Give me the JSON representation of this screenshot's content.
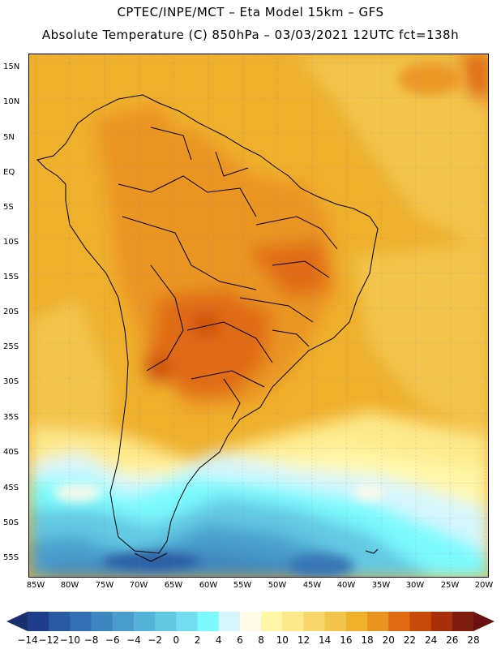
{
  "header": {
    "line1": "CPTEC/INPE/MCT –  Eta Model 15km – GFS",
    "line2": "Absolute Temperature (C) 850hPa – 03/03/2021 12UTC fct=138h"
  },
  "map": {
    "lat_labels": [
      "15N",
      "10N",
      "5N",
      "EQ",
      "5S",
      "10S",
      "15S",
      "20S",
      "25S",
      "30S",
      "35S",
      "40S",
      "45S",
      "50S",
      "55S"
    ],
    "lon_labels": [
      "85W",
      "80W",
      "75W",
      "70W",
      "65W",
      "60W",
      "55W",
      "50W",
      "45W",
      "40W",
      "35W",
      "30W",
      "25W",
      "20W"
    ]
  },
  "colorbar": {
    "labels": [
      "-14",
      "-12",
      "-10",
      "-8",
      "-6",
      "-4",
      "-2",
      "0",
      "2",
      "4",
      "6",
      "8",
      "10",
      "12",
      "14",
      "16",
      "18",
      "20",
      "22",
      "24",
      "26",
      "28"
    ],
    "colors": [
      "#1f3d8a",
      "#2a5aa0",
      "#3471b2",
      "#3e86bf",
      "#4a9ccc",
      "#55b2d8",
      "#62c8e2",
      "#72def0",
      "#7cfaff",
      "#d7f6fc",
      "#fffbe8",
      "#fff6a6",
      "#fde98a",
      "#f8d66a",
      "#f3c44c",
      "#efb02c",
      "#ea9420",
      "#e06a12",
      "#c84a0a",
      "#a8300a",
      "#7e1e0e"
    ],
    "left_cap_color": "#1a2f70",
    "right_cap_color": "#6a1010"
  },
  "icons": {
    "map": "south-america-temperature-map",
    "arrow_left": "colorbar-left-arrow",
    "arrow_right": "colorbar-right-arrow"
  }
}
